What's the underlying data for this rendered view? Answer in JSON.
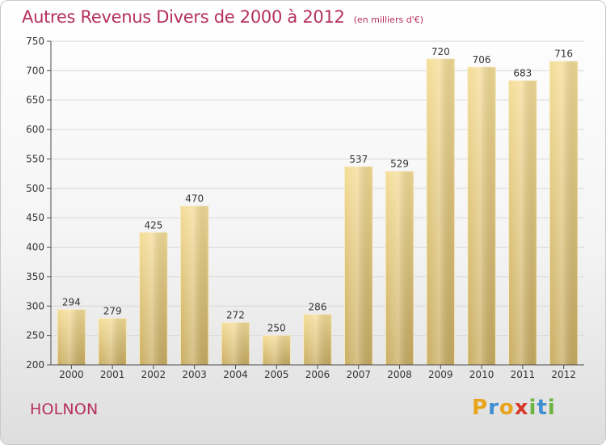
{
  "header": {
    "title": "Autres Revenus Divers de 2000 à 2012",
    "subtitle": "(en milliers d'€)"
  },
  "footer": {
    "location": "HOLNON",
    "logo_letters": [
      {
        "char": "P",
        "color": "#e8a51c"
      },
      {
        "char": "r",
        "color": "#3f8fd1"
      },
      {
        "char": "o",
        "color": "#e8a51c"
      },
      {
        "char": "x",
        "color": "#d63a2a"
      },
      {
        "char": "i",
        "color": "#6cb33f"
      },
      {
        "char": "t",
        "color": "#3f8fd1"
      },
      {
        "char": "i",
        "color": "#6cb33f"
      }
    ]
  },
  "chart_data": {
    "type": "bar",
    "categories": [
      "2000",
      "2001",
      "2002",
      "2003",
      "2004",
      "2005",
      "2006",
      "2007",
      "2008",
      "2009",
      "2010",
      "2011",
      "2012"
    ],
    "values": [
      294,
      279,
      425,
      470,
      272,
      250,
      286,
      537,
      529,
      720,
      706,
      683,
      716
    ],
    "data_labels": [
      "294",
      "279",
      "425",
      "470",
      "272",
      "250",
      "286",
      "537",
      "529",
      "720",
      "706",
      "683",
      "716"
    ],
    "title": "Autres Revenus Divers de 2000 à 2012",
    "xlabel": "",
    "ylabel": "",
    "ylim": [
      200,
      750
    ],
    "yticks": [
      200,
      250,
      300,
      350,
      400,
      450,
      500,
      550,
      600,
      650,
      700,
      750
    ],
    "grid": true,
    "bar_color": "#e2c67a",
    "axis_color": "#4d4d4d"
  }
}
